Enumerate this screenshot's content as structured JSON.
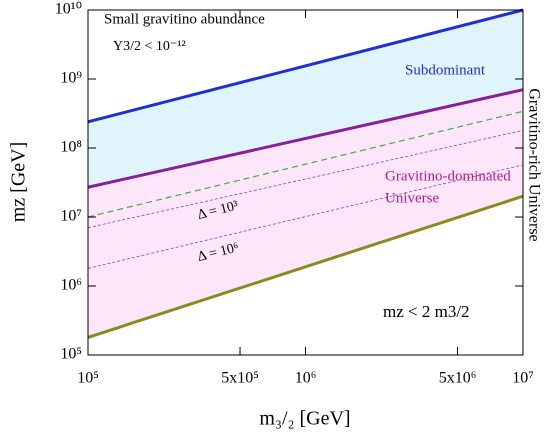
{
  "chart_data": {
    "type": "line",
    "xscale": "log",
    "yscale": "log",
    "xlim": [
      100000,
      10000000
    ],
    "ylim": [
      100000,
      10000000000
    ],
    "xticks": [
      {
        "value": 100000,
        "label": "10⁵"
      },
      {
        "value": 500000,
        "label": "5x10⁵"
      },
      {
        "value": 1000000,
        "label": "10⁶"
      },
      {
        "value": 5000000,
        "label": "5x10⁶"
      },
      {
        "value": 10000000,
        "label": "10⁷"
      }
    ],
    "yticks": [
      {
        "value": 100000,
        "label": "10⁵"
      },
      {
        "value": 1000000,
        "label": "10⁶"
      },
      {
        "value": 10000000,
        "label": "10⁷"
      },
      {
        "value": 100000000,
        "label": "10⁸"
      },
      {
        "value": 1000000000,
        "label": "10⁹"
      },
      {
        "value": 10000000000,
        "label": "10¹⁰"
      }
    ],
    "xlabel": "m₃/₂ [GeV]",
    "ylabel": "mz [GeV]",
    "x": [
      100000,
      10000000
    ],
    "series": [
      {
        "color": "#1f2fd6",
        "width": 3,
        "dash": "none",
        "values": [
          240000000,
          10000000000
        ]
      },
      {
        "color": "#8a1f9a",
        "width": 3,
        "dash": "none",
        "values": [
          27000000,
          700000000
        ]
      },
      {
        "color": "#3fae3f",
        "width": 1.2,
        "dash": "6 4",
        "values": [
          10000000,
          340000000
        ]
      },
      {
        "color": "#6a4fd0",
        "width": 0.8,
        "dash": "3 2",
        "values": [
          7000000,
          180000000
        ]
      },
      {
        "color": "#6a4fd0",
        "width": 0.8,
        "dash": "3 2",
        "values": [
          1800000,
          57000000
        ]
      },
      {
        "color": "#8b8a1e",
        "width": 3,
        "dash": "none",
        "values": [
          180000,
          20000000
        ]
      }
    ],
    "fills": [
      {
        "between": [
          0,
          1
        ],
        "color": "#dff4fb"
      },
      {
        "between": [
          1,
          5
        ],
        "color": "#fde6fa"
      }
    ],
    "annotations": {
      "abundance": "Small gravitino abundance",
      "yield": "Y3/2 < 10⁻¹²",
      "subdominant": "Subdominant",
      "rich": "Gravitino-rich Universe",
      "dominated_1": "Gravitino-dominated",
      "dominated_2": "Universe",
      "delta3": "Δ = 10³",
      "delta6": "Δ = 10⁶",
      "bound": "mz < 2 m3/2"
    }
  }
}
